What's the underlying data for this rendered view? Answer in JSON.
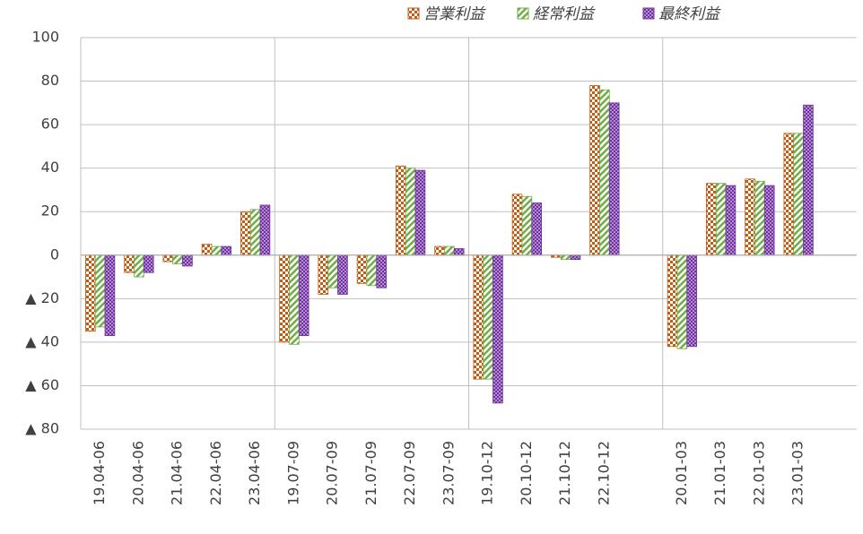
{
  "chart_data": {
    "type": "bar",
    "categories": [
      "19.04-06",
      "20.04-06",
      "21.04-06",
      "22.04-06",
      "23.04-06",
      "19.07-09",
      "20.07-09",
      "21.07-09",
      "22.07-09",
      "23.07-09",
      "19.10-12",
      "20.10-12",
      "21.10-12",
      "22.10-12",
      null,
      "20.01-03",
      "21.01-03",
      "22.01-03",
      "23.01-03",
      null
    ],
    "series": [
      {
        "name": "営業利益",
        "color": "#c55a11",
        "values": [
          -35,
          -8,
          -3,
          5,
          20,
          -40,
          -18,
          -13,
          41,
          4,
          -57,
          28,
          -1,
          78,
          null,
          -42,
          33,
          35,
          56,
          null
        ]
      },
      {
        "name": "経常利益",
        "color": "#70ad47",
        "values": [
          -33,
          -10,
          -4,
          4,
          21,
          -41,
          -15,
          -14,
          40,
          4,
          -57,
          27,
          -2,
          76,
          null,
          -43,
          33,
          34,
          56,
          null
        ]
      },
      {
        "name": "最終利益",
        "color": "#7030a0",
        "values": [
          -37,
          -8,
          -5,
          4,
          23,
          -37,
          -18,
          -15,
          39,
          3,
          -68,
          24,
          -2,
          70,
          null,
          -42,
          32,
          32,
          69,
          null
        ]
      }
    ],
    "ylim": [
      -80,
      100
    ],
    "yticks": [
      {
        "value": -80,
        "label": "▲ 80"
      },
      {
        "value": -60,
        "label": "▲ 60"
      },
      {
        "value": -40,
        "label": "▲ 40"
      },
      {
        "value": -20,
        "label": "▲ 20"
      },
      0,
      20,
      40,
      60,
      80,
      100
    ],
    "grid": true,
    "legend": "top-right"
  }
}
